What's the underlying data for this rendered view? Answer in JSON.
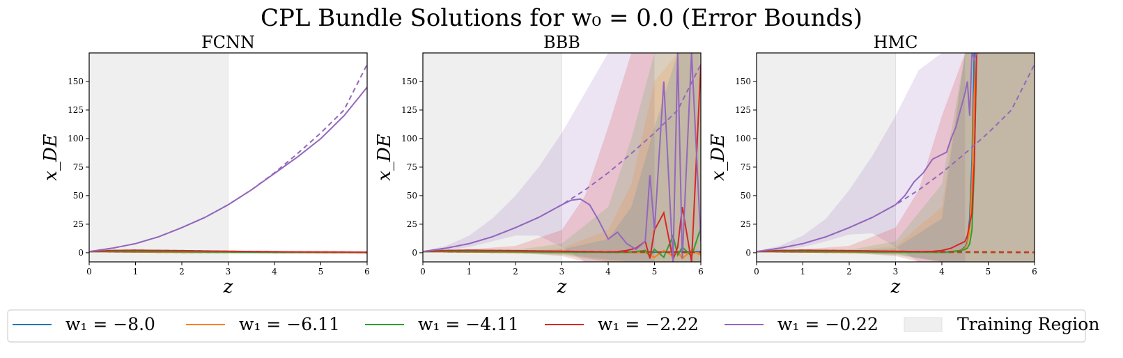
{
  "chart_data": {
    "type": "line",
    "title": "CPL Bundle Solutions for w₀ = 0.0 (Error Bounds)",
    "xlabel": "z",
    "ylabel": "x_DE",
    "xlim": [
      0,
      6
    ],
    "ylim": [
      -8,
      175
    ],
    "xticks": [
      "0",
      "1",
      "2",
      "3",
      "4",
      "5",
      "6"
    ],
    "yticks": [
      "0",
      "25",
      "50",
      "75",
      "100",
      "125",
      "150"
    ],
    "training_region": [
      0,
      3
    ],
    "training_region_color": "#efefef",
    "dashed_line_meaning": "analytic solution (dashed)",
    "legend": [
      {
        "label": "w₁ = −8.0",
        "color": "#1f77b4",
        "key": "s1"
      },
      {
        "label": "w₁ = −6.11",
        "color": "#ff7f0e",
        "key": "s2"
      },
      {
        "label": "w₁ = −4.11",
        "color": "#2ca02c",
        "key": "s3"
      },
      {
        "label": "w₁ = −2.22",
        "color": "#d62728",
        "key": "s4"
      },
      {
        "label": "w₁ = −0.22",
        "color": "#9467bd",
        "key": "s5"
      },
      {
        "label": "Training Region",
        "color": "#efefef",
        "key": "train"
      }
    ],
    "legend_placement": "bottom",
    "analytic": {
      "x": [
        0,
        0.5,
        1,
        1.5,
        2,
        2.5,
        3,
        3.5,
        4,
        4.5,
        5,
        5.5,
        6
      ],
      "s1": [
        1.0,
        0.8,
        0.6,
        0.5,
        0.4,
        0.35,
        0.3,
        0.25,
        0.2,
        0.2,
        0.15,
        0.15,
        0.1
      ],
      "s2": [
        1.0,
        0.9,
        0.75,
        0.6,
        0.5,
        0.45,
        0.4,
        0.35,
        0.3,
        0.25,
        0.2,
        0.2,
        0.2
      ],
      "s3": [
        1.0,
        1.2,
        1.1,
        0.95,
        0.85,
        0.75,
        0.65,
        0.55,
        0.5,
        0.45,
        0.4,
        0.35,
        0.3
      ],
      "s4": [
        1.0,
        2.0,
        2.2,
        2.0,
        1.8,
        1.5,
        1.3,
        1.1,
        0.9,
        0.8,
        0.7,
        0.6,
        0.5
      ],
      "s5": [
        1.0,
        4.0,
        8.0,
        14.0,
        22.0,
        31.0,
        42.0,
        55.0,
        70.0,
        87.0,
        105.0,
        125.0,
        165.0
      ]
    },
    "panels": [
      {
        "title": "FCNN",
        "predicted": {
          "x": [
            0,
            0.5,
            1,
            1.5,
            2,
            2.5,
            3,
            3.5,
            4,
            4.5,
            5,
            5.5,
            6
          ],
          "s1": [
            1.0,
            0.8,
            0.6,
            0.5,
            0.4,
            0.35,
            0.3,
            0.25,
            0.2,
            0.2,
            0.15,
            0.15,
            0.1
          ],
          "s2": [
            1.0,
            0.9,
            0.75,
            0.6,
            0.5,
            0.45,
            0.4,
            0.35,
            0.3,
            0.25,
            0.2,
            0.2,
            0.2
          ],
          "s3": [
            1.0,
            1.2,
            1.1,
            0.95,
            0.85,
            0.75,
            0.65,
            0.55,
            0.5,
            0.45,
            0.4,
            0.35,
            0.3
          ],
          "s4": [
            1.0,
            2.0,
            2.2,
            2.0,
            1.8,
            1.5,
            1.3,
            1.1,
            0.9,
            0.8,
            0.7,
            0.6,
            0.5
          ],
          "s5": [
            1.0,
            4.0,
            8.0,
            14.0,
            22.0,
            31.0,
            42.0,
            55.0,
            69.5,
            84.0,
            100.0,
            120.0,
            145.0
          ]
        },
        "bands": []
      },
      {
        "title": "BBB",
        "predicted": {
          "x": [
            0,
            0.5,
            1,
            1.5,
            2,
            2.5,
            3,
            3.2,
            3.4,
            3.6,
            3.8,
            4.0,
            4.2,
            4.4,
            4.6,
            4.8,
            4.9,
            5.0,
            5.2,
            5.4,
            5.5,
            5.6,
            5.8,
            6.0
          ],
          "s1": [
            1.0,
            0.8,
            0.6,
            0.5,
            0.4,
            0.35,
            0.3,
            0.3,
            0.3,
            0.3,
            0.3,
            0.3,
            0.3,
            0.3,
            0.4,
            0.5,
            0.5,
            0.5,
            0.6,
            0.8,
            0.8,
            1.0,
            1.0,
            1.0
          ],
          "s2": [
            1.0,
            0.9,
            0.75,
            0.6,
            0.5,
            0.45,
            0.4,
            0.4,
            0.4,
            0.4,
            0.4,
            0.4,
            0.3,
            0.3,
            0.5,
            0.5,
            -2.0,
            -4.0,
            2.0,
            -3.0,
            1.0,
            -5.0,
            2.0,
            -2.0
          ],
          "s3": [
            1.0,
            1.2,
            1.1,
            0.95,
            0.85,
            0.75,
            0.65,
            0.6,
            0.6,
            0.6,
            0.6,
            0.5,
            0.5,
            0.5,
            1.0,
            2.0,
            -3.0,
            3.0,
            -4.0,
            15.0,
            -2.0,
            5.0,
            -3.0,
            22.0
          ],
          "s4": [
            1.0,
            2.0,
            2.2,
            2.0,
            1.8,
            1.5,
            1.3,
            1.2,
            1.0,
            0.9,
            0.8,
            0.7,
            1.0,
            2.0,
            4.0,
            10.0,
            -5.0,
            20.0,
            35.0,
            -6.0,
            5.0,
            40.0,
            -8.0,
            165.0
          ],
          "s5": [
            1.0,
            4.0,
            8.0,
            14.0,
            22.0,
            31.0,
            42.0,
            46.0,
            47.0,
            42.0,
            28.0,
            12.0,
            18.0,
            8.0,
            3.0,
            10.0,
            68.0,
            20.0,
            150.0,
            -8.0,
            175.0,
            -5.0,
            175.0,
            10.0
          ]
        },
        "bands": [
          {
            "key": "s5",
            "color": "#9467bd",
            "alpha": 0.18,
            "x": [
              0,
              0.5,
              1,
              1.5,
              2,
              2.5,
              3,
              3.5,
              4,
              4.5,
              5
            ],
            "upper": [
              1.5,
              6.0,
              15.0,
              30.0,
              50.0,
              75.0,
              105.0,
              140.0,
              175.0,
              175.0,
              175.0
            ],
            "lower": [
              0.5,
              2.0,
              5.0,
              10.0,
              15.0,
              15.0,
              5.0,
              -8.0,
              -8.0,
              -8.0,
              -8.0
            ]
          },
          {
            "key": "s4",
            "color": "#d62728",
            "alpha": 0.18,
            "x": [
              0,
              1,
              2,
              3,
              3.5,
              4,
              4.5,
              5,
              6
            ],
            "upper": [
              1.2,
              3.0,
              6.0,
              20.0,
              50.0,
              110.0,
              175.0,
              175.0,
              175.0
            ],
            "lower": [
              0.8,
              1.5,
              0.0,
              -3.0,
              -8.0,
              -8.0,
              -8.0,
              -8.0,
              -8.0
            ]
          },
          {
            "key": "s3",
            "color": "#2ca02c",
            "alpha": 0.15,
            "x": [
              0,
              1,
              2,
              3,
              4,
              4.5,
              5,
              6
            ],
            "upper": [
              1.1,
              1.5,
              2.5,
              8.0,
              40.0,
              100.0,
              175.0,
              175.0
            ],
            "lower": [
              0.9,
              0.8,
              0.2,
              -2.0,
              -8.0,
              -8.0,
              -8.0,
              -8.0
            ]
          },
          {
            "key": "s2",
            "color": "#ff7f0e",
            "alpha": 0.15,
            "x": [
              0,
              1,
              2,
              3,
              4,
              4.5,
              5,
              5.5,
              6
            ],
            "upper": [
              1.1,
              1.0,
              1.5,
              4.0,
              20.0,
              60.0,
              150.0,
              175.0,
              175.0
            ],
            "lower": [
              0.9,
              0.6,
              0.2,
              -1.0,
              -8.0,
              -8.0,
              -8.0,
              -8.0,
              -8.0
            ]
          },
          {
            "key": "s1",
            "color": "#1f77b4",
            "alpha": 0.15,
            "x": [
              0,
              1,
              2,
              3,
              4,
              4.5,
              5,
              5.5,
              6
            ],
            "upper": [
              1.1,
              0.9,
              1.2,
              3.0,
              12.0,
              40.0,
              110.0,
              175.0,
              175.0
            ],
            "lower": [
              0.9,
              0.4,
              0.1,
              -1.0,
              -6.0,
              -8.0,
              -8.0,
              -8.0,
              -8.0
            ]
          }
        ]
      },
      {
        "title": "HMC",
        "predicted": {
          "x": [
            0,
            0.5,
            1,
            1.5,
            2,
            2.5,
            3,
            3.2,
            3.4,
            3.6,
            3.8,
            4.0,
            4.1,
            4.2,
            4.3,
            4.4,
            4.5,
            4.55,
            4.6,
            4.65,
            4.7,
            4.75,
            4.8
          ],
          "s1": [
            1.0,
            0.8,
            0.6,
            0.5,
            0.4,
            0.35,
            0.3,
            0.3,
            0.3,
            0.3,
            0.3,
            0.3,
            0.4,
            0.5,
            1.0,
            2.0,
            5.0,
            10.0,
            30.0,
            80.0,
            175.0,
            175.0,
            175.0
          ],
          "s2": [
            1.0,
            0.9,
            0.75,
            0.6,
            0.5,
            0.45,
            0.4,
            0.4,
            0.4,
            0.4,
            0.4,
            0.5,
            0.6,
            0.8,
            1.0,
            2.0,
            4.0,
            8.0,
            20.0,
            60.0,
            140.0,
            175.0,
            175.0
          ],
          "s3": [
            1.0,
            1.2,
            1.1,
            0.95,
            0.85,
            0.75,
            0.65,
            0.6,
            0.6,
            0.6,
            0.6,
            0.6,
            0.8,
            1.0,
            1.5,
            2.0,
            3.0,
            4.0,
            8.0,
            20.0,
            75.0,
            175.0,
            175.0
          ],
          "s4": [
            1.0,
            2.0,
            2.2,
            2.0,
            1.8,
            1.5,
            1.3,
            1.2,
            1.1,
            1.0,
            1.2,
            2.0,
            3.0,
            4.0,
            6.0,
            8.0,
            10.0,
            15.0,
            25.0,
            35.0,
            80.0,
            175.0,
            175.0
          ],
          "s5": [
            1.0,
            4.0,
            8.0,
            14.0,
            22.0,
            31.0,
            42.0,
            50.0,
            62.0,
            70.0,
            82.0,
            86.0,
            88.0,
            100.0,
            110.0,
            125.0,
            140.0,
            150.0,
            120.0,
            175.0,
            170.0,
            175.0,
            175.0
          ]
        },
        "bands": [
          {
            "key": "s5",
            "color": "#9467bd",
            "alpha": 0.18,
            "x": [
              0,
              0.5,
              1,
              1.5,
              2,
              2.5,
              3,
              3.5,
              4,
              4.5
            ],
            "upper": [
              1.5,
              6.0,
              15.0,
              30.0,
              55.0,
              85.0,
              120.0,
              160.0,
              175.0,
              175.0
            ],
            "lower": [
              0.5,
              2.0,
              5.0,
              10.0,
              16.0,
              17.0,
              5.0,
              -8.0,
              -8.0,
              -8.0
            ]
          },
          {
            "key": "s4",
            "color": "#d62728",
            "alpha": 0.18,
            "x": [
              0,
              1,
              2,
              3,
              3.5,
              4,
              4.5,
              5,
              6
            ],
            "upper": [
              1.2,
              3.0,
              6.0,
              22.0,
              55.0,
              120.0,
              175.0,
              175.0,
              175.0
            ],
            "lower": [
              0.8,
              1.5,
              0.0,
              -3.0,
              -8.0,
              -8.0,
              -8.0,
              -8.0,
              -8.0
            ]
          },
          {
            "key": "s3",
            "color": "#2ca02c",
            "alpha": 0.15,
            "x": [
              0,
              1,
              2,
              3,
              4,
              4.5,
              6
            ],
            "upper": [
              1.1,
              1.5,
              2.5,
              10.0,
              60.0,
              175.0,
              175.0
            ],
            "lower": [
              0.9,
              0.8,
              0.2,
              -2.0,
              -8.0,
              -8.0,
              -8.0
            ]
          },
          {
            "key": "s2",
            "color": "#ff7f0e",
            "alpha": 0.15,
            "x": [
              0,
              1,
              2,
              3,
              4,
              4.5,
              6
            ],
            "upper": [
              1.1,
              1.0,
              1.5,
              6.0,
              40.0,
              175.0,
              175.0
            ],
            "lower": [
              0.9,
              0.6,
              0.2,
              -1.0,
              -8.0,
              -8.0,
              -8.0
            ]
          },
          {
            "key": "s1",
            "color": "#1f77b4",
            "alpha": 0.15,
            "x": [
              0,
              1,
              2,
              3,
              4,
              4.5,
              6
            ],
            "upper": [
              1.1,
              0.9,
              1.2,
              4.0,
              30.0,
              175.0,
              175.0
            ],
            "lower": [
              0.9,
              0.4,
              0.1,
              -1.0,
              -8.0,
              -8.0,
              -8.0
            ]
          }
        ]
      }
    ]
  }
}
